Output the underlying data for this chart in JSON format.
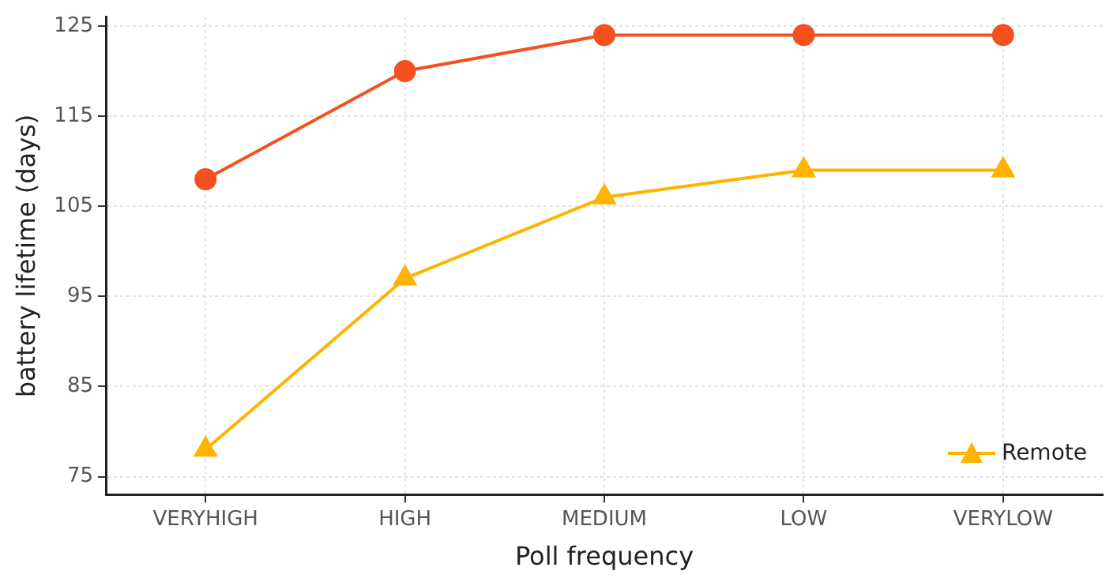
{
  "chart_data": {
    "type": "line",
    "xlabel": "Poll frequency",
    "ylabel": "battery lifetime (days)",
    "categories": [
      "VERYHIGH",
      "HIGH",
      "MEDIUM",
      "LOW",
      "VERYLOW"
    ],
    "series": [
      {
        "color": "#f4511e",
        "marker": "circle",
        "values": [
          108,
          120,
          124,
          124,
          124
        ]
      },
      {
        "name": "Remote",
        "color": "#ffb300",
        "marker": "triangle",
        "values": [
          78,
          97,
          106,
          109,
          109
        ]
      }
    ],
    "ylim": [
      73,
      126
    ],
    "yticks": [
      75,
      85,
      95,
      105,
      115,
      125
    ],
    "grid": true,
    "legend": "bottom right"
  }
}
